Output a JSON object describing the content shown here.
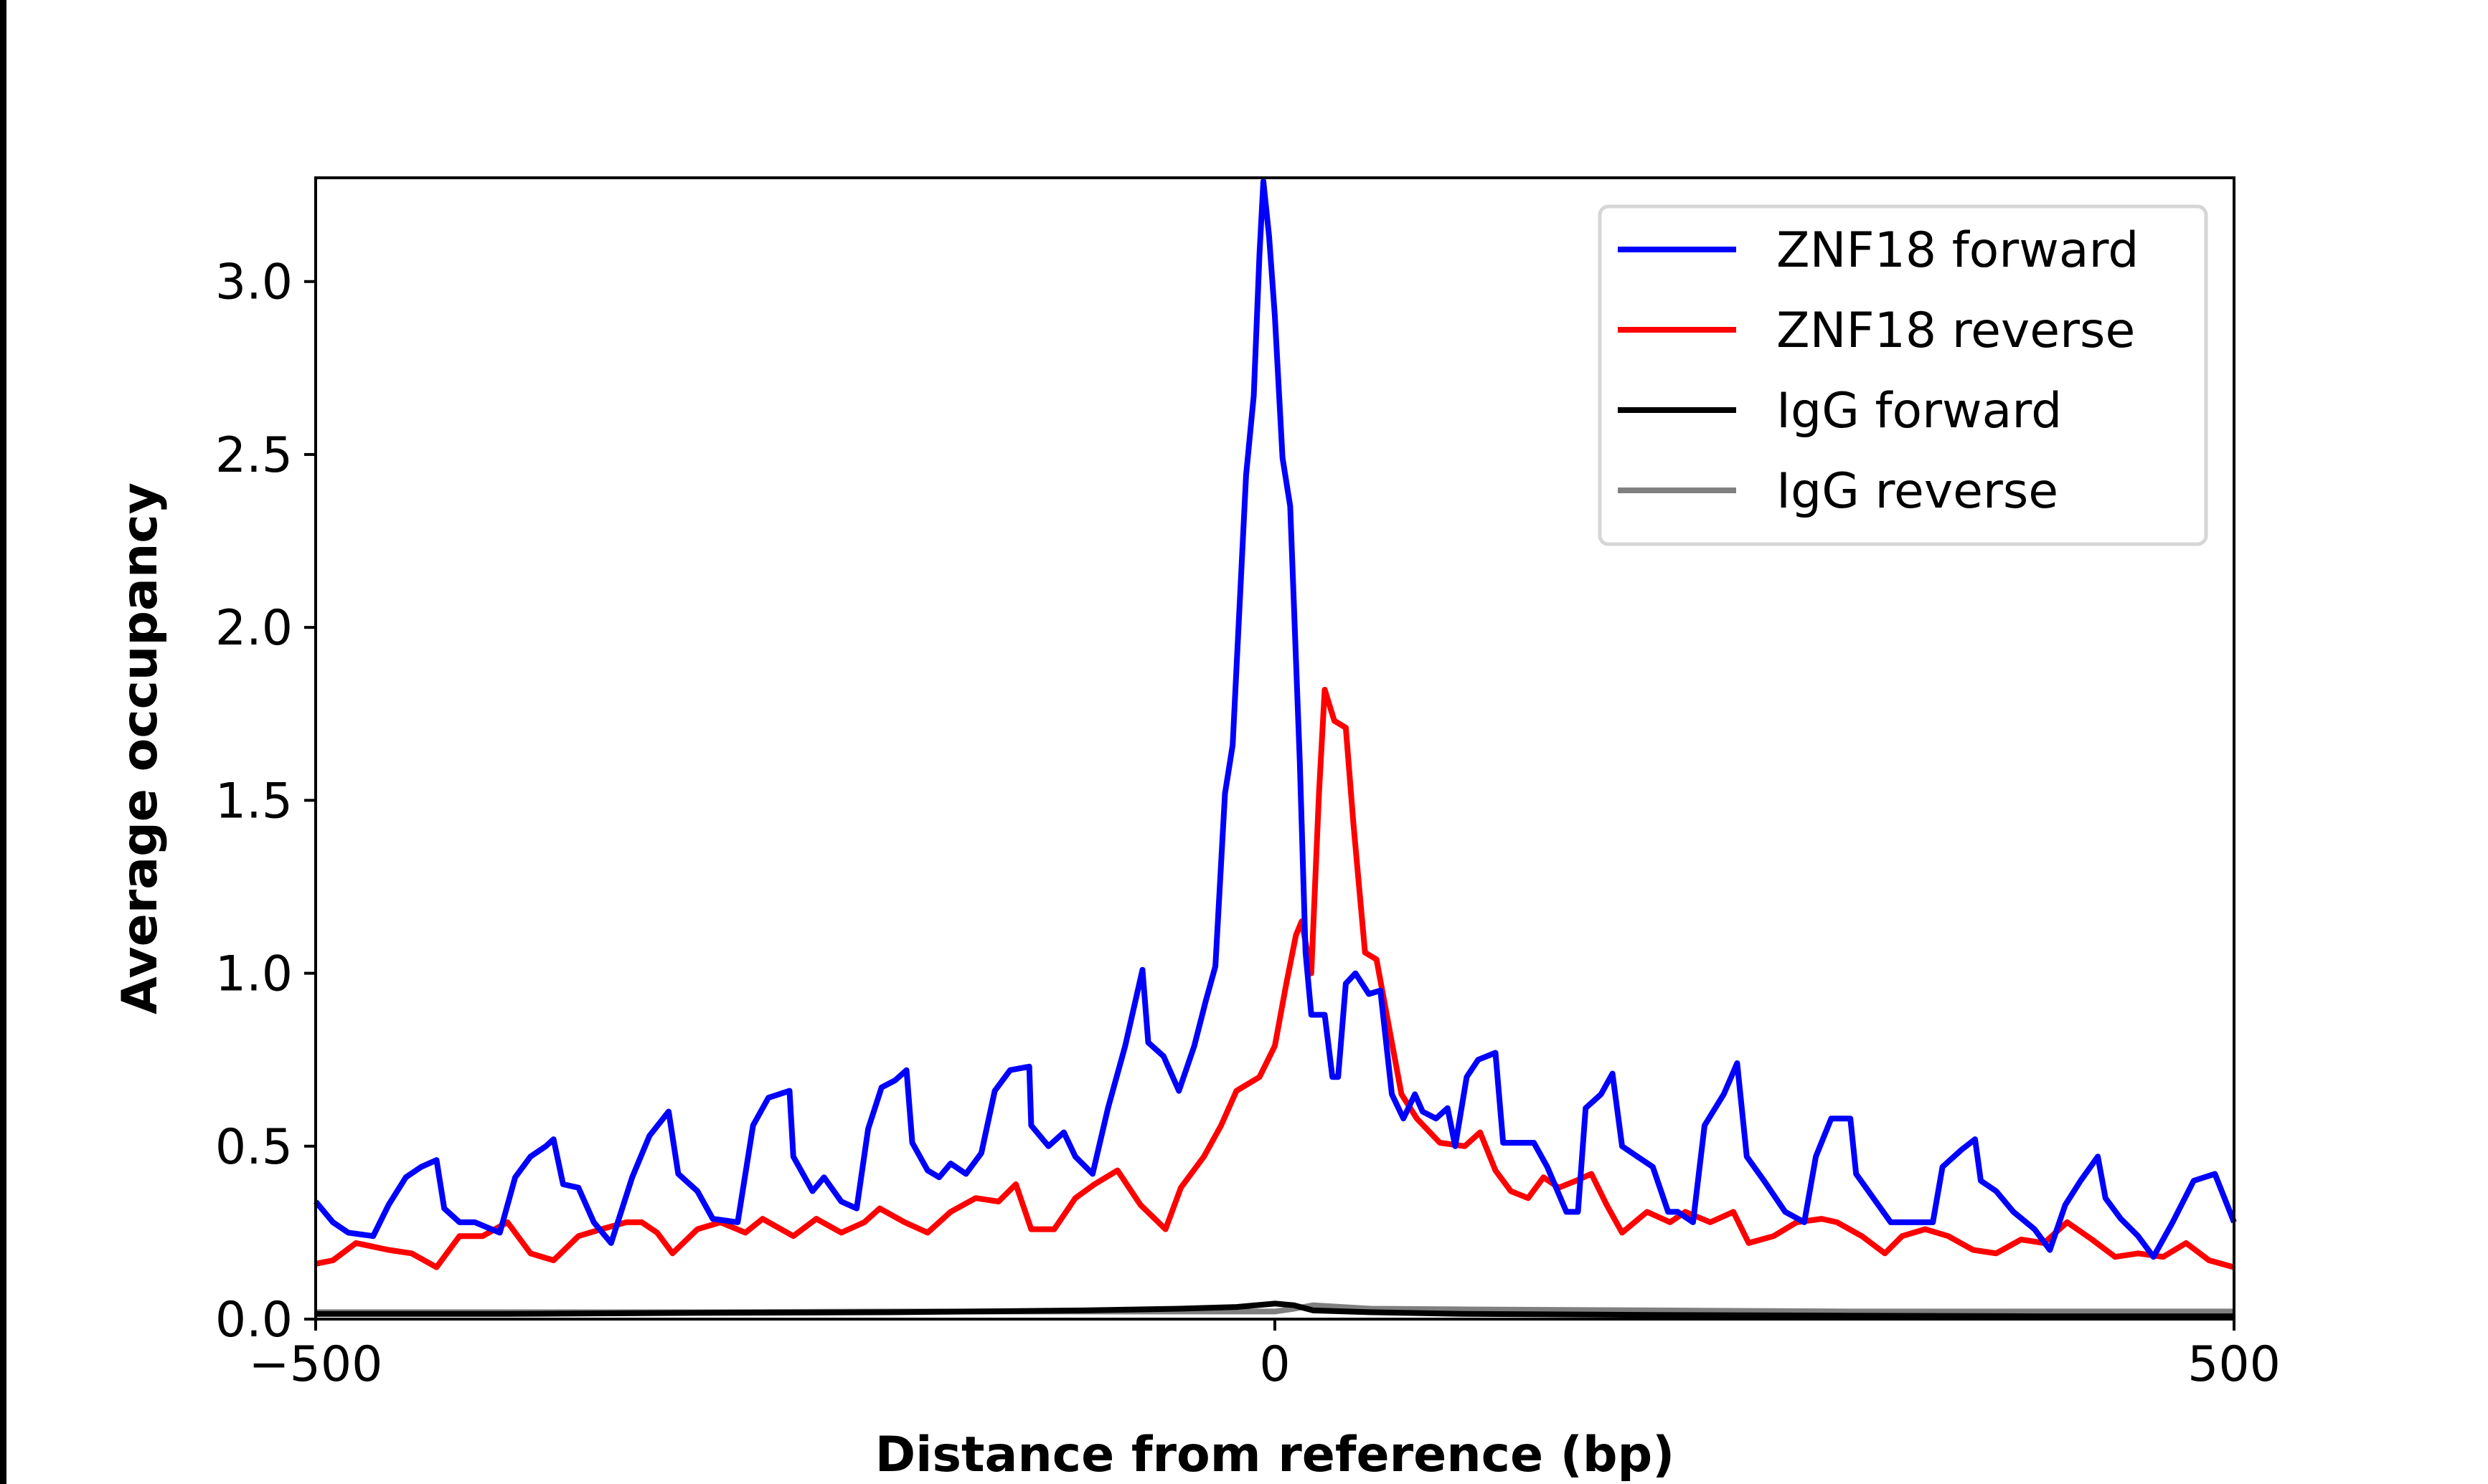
{
  "chart_data": {
    "type": "line",
    "xlabel": "Distance from reference (bp)",
    "ylabel": "Average occupancy",
    "xlim": [
      -500,
      500
    ],
    "ylim": [
      0,
      3.3
    ],
    "xticks": [
      -500,
      0,
      500
    ],
    "xtick_labels": [
      "−500",
      "0",
      "500"
    ],
    "yticks": [
      0.0,
      0.5,
      1.0,
      1.5,
      2.0,
      2.5,
      3.0
    ],
    "ytick_labels": [
      "0.0",
      "0.5",
      "1.0",
      "1.5",
      "2.0",
      "2.5",
      "3.0"
    ],
    "grid": false,
    "legend_position": "top-right",
    "series": [
      {
        "name": "ZNF18 forward",
        "color": "#0000ff",
        "x": [
          -500,
          -491,
          -483,
          -470,
          -462,
          -453,
          -445,
          -437,
          -433,
          -425,
          -417,
          -404,
          -396,
          -388,
          -380,
          -376,
          -371,
          -363,
          -355,
          -346,
          -335,
          -326,
          -316,
          -311,
          -301,
          -293,
          -280,
          -272,
          -264,
          -253,
          -251,
          -241,
          -235,
          -226,
          -218,
          -212,
          -205,
          -198,
          -192,
          -189,
          -181,
          -175,
          -169,
          -161,
          -153,
          -146,
          -138,
          -128,
          -127,
          -118,
          -110,
          -104,
          -95,
          -87,
          -78,
          -69,
          -66,
          -58,
          -50,
          -42,
          -36,
          -31,
          -26,
          -22,
          -15,
          -11,
          -8,
          -6,
          -3,
          0,
          4,
          8,
          13,
          16,
          19,
          26,
          30,
          33,
          37,
          42,
          49,
          55,
          61,
          67,
          73,
          77,
          84,
          90,
          94,
          100,
          106,
          115,
          119,
          127,
          135,
          142,
          152,
          158,
          162,
          170,
          176,
          181,
          189,
          197,
          205,
          210,
          218,
          224,
          234,
          241,
          246,
          255,
          266,
          276,
          282,
          290,
          300,
          303,
          312,
          321,
          335,
          343,
          348,
          358,
          365,
          368,
          376,
          385,
          396,
          404,
          412,
          420,
          429,
          433,
          441,
          450,
          458,
          468,
          479,
          490,
          500
        ],
        "y": [
          0.34,
          0.28,
          0.25,
          0.24,
          0.33,
          0.41,
          0.44,
          0.46,
          0.32,
          0.28,
          0.28,
          0.25,
          0.41,
          0.47,
          0.5,
          0.52,
          0.39,
          0.38,
          0.28,
          0.22,
          0.41,
          0.53,
          0.6,
          0.42,
          0.37,
          0.29,
          0.28,
          0.56,
          0.64,
          0.66,
          0.47,
          0.37,
          0.41,
          0.34,
          0.32,
          0.55,
          0.67,
          0.69,
          0.72,
          0.51,
          0.43,
          0.41,
          0.45,
          0.42,
          0.48,
          0.66,
          0.72,
          0.73,
          0.56,
          0.5,
          0.54,
          0.47,
          0.42,
          0.61,
          0.79,
          1.01,
          0.8,
          0.76,
          0.66,
          0.79,
          0.92,
          1.02,
          1.52,
          1.66,
          2.44,
          2.67,
          3.08,
          3.29,
          3.13,
          2.9,
          2.49,
          2.35,
          1.61,
          1.06,
          0.88,
          0.88,
          0.7,
          0.7,
          0.97,
          1.0,
          0.94,
          0.95,
          0.65,
          0.58,
          0.65,
          0.6,
          0.58,
          0.61,
          0.5,
          0.7,
          0.75,
          0.77,
          0.51,
          0.51,
          0.51,
          0.44,
          0.31,
          0.31,
          0.61,
          0.65,
          0.71,
          0.5,
          0.47,
          0.44,
          0.31,
          0.31,
          0.28,
          0.56,
          0.65,
          0.74,
          0.47,
          0.4,
          0.31,
          0.28,
          0.47,
          0.58,
          0.58,
          0.42,
          0.35,
          0.28,
          0.28,
          0.28,
          0.44,
          0.49,
          0.52,
          0.4,
          0.37,
          0.31,
          0.26,
          0.2,
          0.33,
          0.4,
          0.47,
          0.35,
          0.29,
          0.24,
          0.18,
          0.28,
          0.4,
          0.42,
          0.28
        ]
      },
      {
        "name": "ZNF18 reverse",
        "color": "#ff0000",
        "x": [
          -500,
          -491,
          -479,
          -462,
          -450,
          -437,
          -425,
          -413,
          -400,
          -388,
          -376,
          -363,
          -351,
          -338,
          -330,
          -322,
          -314,
          -301,
          -289,
          -276,
          -267,
          -251,
          -239,
          -226,
          -214,
          -206,
          -193,
          -181,
          -169,
          -156,
          -144,
          -135,
          -127,
          -115,
          -104,
          -94,
          -82,
          -70,
          -57,
          -49,
          -37,
          -28,
          -20,
          -8,
          0,
          6,
          11,
          14,
          19,
          23,
          26,
          31,
          37,
          41,
          47,
          53,
          60,
          66,
          74,
          86,
          99,
          107,
          115,
          123,
          132,
          140,
          148,
          157,
          165,
          173,
          181,
          194,
          206,
          214,
          227,
          239,
          247,
          260,
          272,
          285,
          293,
          306,
          318,
          327,
          339,
          351,
          364,
          376,
          389,
          401,
          413,
          426,
          438,
          450,
          463,
          475,
          487,
          500
        ],
        "y": [
          0.16,
          0.17,
          0.22,
          0.2,
          0.19,
          0.15,
          0.24,
          0.24,
          0.28,
          0.19,
          0.17,
          0.24,
          0.26,
          0.28,
          0.28,
          0.25,
          0.19,
          0.26,
          0.28,
          0.25,
          0.29,
          0.24,
          0.29,
          0.25,
          0.28,
          0.32,
          0.28,
          0.25,
          0.31,
          0.35,
          0.34,
          0.39,
          0.26,
          0.26,
          0.35,
          0.39,
          0.43,
          0.33,
          0.26,
          0.38,
          0.47,
          0.56,
          0.66,
          0.7,
          0.79,
          0.97,
          1.11,
          1.15,
          1.0,
          1.52,
          1.82,
          1.73,
          1.71,
          1.43,
          1.06,
          1.04,
          0.83,
          0.65,
          0.58,
          0.51,
          0.5,
          0.54,
          0.43,
          0.37,
          0.35,
          0.41,
          0.38,
          0.4,
          0.42,
          0.33,
          0.25,
          0.31,
          0.28,
          0.31,
          0.28,
          0.31,
          0.22,
          0.24,
          0.28,
          0.29,
          0.28,
          0.24,
          0.19,
          0.24,
          0.26,
          0.24,
          0.2,
          0.19,
          0.23,
          0.22,
          0.28,
          0.23,
          0.18,
          0.19,
          0.18,
          0.22,
          0.17,
          0.15
        ]
      },
      {
        "name": "IgG forward",
        "color": "#000000",
        "x": [
          -500,
          -400,
          -300,
          -200,
          -100,
          -50,
          -20,
          0,
          10,
          20,
          50,
          100,
          200,
          300,
          400,
          500
        ],
        "y": [
          0.015,
          0.015,
          0.018,
          0.02,
          0.025,
          0.03,
          0.035,
          0.045,
          0.04,
          0.025,
          0.02,
          0.015,
          0.012,
          0.01,
          0.008,
          0.008
        ]
      },
      {
        "name": "IgG reverse",
        "color": "#808080",
        "x": [
          -500,
          -400,
          -300,
          -200,
          -100,
          0,
          10,
          20,
          50,
          100,
          200,
          300,
          400,
          500
        ],
        "y": [
          0.02,
          0.02,
          0.02,
          0.022,
          0.022,
          0.022,
          0.03,
          0.04,
          0.03,
          0.028,
          0.025,
          0.022,
          0.022,
          0.022
        ]
      }
    ]
  }
}
